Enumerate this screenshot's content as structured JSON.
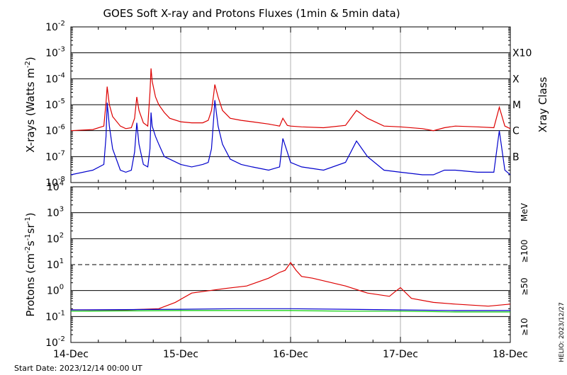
{
  "chart_data": [
    {
      "type": "line",
      "title": "GOES Soft X-ray and Protons Fluxes  (1min & 5min data)",
      "ylabel": "X-rays (Watts m",
      "ylabel_sup": "-2",
      "ylabel_close": ")",
      "right_label": "Xray Class",
      "y_scale": "log",
      "ylim": [
        1e-08,
        0.01
      ],
      "y_ticks": [
        {
          "base": "10",
          "exp": "-2"
        },
        {
          "base": "10",
          "exp": "-3"
        },
        {
          "base": "10",
          "exp": "-4"
        },
        {
          "base": "10",
          "exp": "-5"
        },
        {
          "base": "10",
          "exp": "-6"
        },
        {
          "base": "10",
          "exp": "-7"
        },
        {
          "base": "10",
          "exp": "-8"
        }
      ],
      "class_labels": [
        {
          "label": "X10",
          "level": 0.001
        },
        {
          "label": "X",
          "level": 0.0001
        },
        {
          "label": "M",
          "level": 1e-05
        },
        {
          "label": "C",
          "level": 1e-06
        },
        {
          "label": "B",
          "level": 1e-07
        }
      ],
      "grid": true,
      "series": [
        {
          "color": "#dd0000",
          "x": [
            0.0,
            0.2,
            0.3,
            0.32,
            0.33,
            0.35,
            0.38,
            0.45,
            0.5,
            0.55,
            0.58,
            0.6,
            0.62,
            0.66,
            0.7,
            0.72,
            0.73,
            0.74,
            0.77,
            0.8,
            0.85,
            0.9,
            1.0,
            1.1,
            1.2,
            1.25,
            1.28,
            1.3,
            1.31,
            1.34,
            1.38,
            1.45,
            1.55,
            1.65,
            1.8,
            1.9,
            1.93,
            1.97,
            2.0,
            2.1,
            2.3,
            2.5,
            2.6,
            2.7,
            2.85,
            3.0,
            3.2,
            3.3,
            3.4,
            3.5,
            3.7,
            3.85,
            3.9,
            3.95,
            4.0
          ],
          "y": [
            1e-06,
            1.1e-06,
            1.5e-06,
            1.2e-05,
            5e-05,
            1e-05,
            3.5e-06,
            1.5e-06,
            1.2e-06,
            1.3e-06,
            3e-06,
            2e-05,
            6e-06,
            2e-06,
            1.5e-06,
            3e-05,
            0.00025,
            8e-05,
            2e-05,
            1e-05,
            5e-06,
            3e-06,
            2.2e-06,
            2e-06,
            2e-06,
            2.5e-06,
            6e-06,
            2.5e-05,
            6e-05,
            2e-05,
            6e-06,
            3e-06,
            2.5e-06,
            2.2e-06,
            1.8e-06,
            1.5e-06,
            3e-06,
            1.6e-06,
            1.5e-06,
            1.4e-06,
            1.3e-06,
            1.6e-06,
            6e-06,
            3e-06,
            1.5e-06,
            1.4e-06,
            1.2e-06,
            1e-06,
            1.3e-06,
            1.5e-06,
            1.4e-06,
            1.3e-06,
            8e-06,
            1.5e-06,
            1.2e-06
          ]
        },
        {
          "color": "#0000cc",
          "x": [
            0.0,
            0.2,
            0.3,
            0.32,
            0.33,
            0.35,
            0.38,
            0.45,
            0.5,
            0.55,
            0.58,
            0.6,
            0.62,
            0.66,
            0.7,
            0.72,
            0.73,
            0.74,
            0.77,
            0.8,
            0.85,
            0.9,
            1.0,
            1.1,
            1.2,
            1.25,
            1.28,
            1.3,
            1.31,
            1.34,
            1.38,
            1.45,
            1.55,
            1.65,
            1.8,
            1.9,
            1.93,
            1.97,
            2.0,
            2.1,
            2.3,
            2.5,
            2.6,
            2.7,
            2.85,
            3.0,
            3.2,
            3.3,
            3.4,
            3.5,
            3.7,
            3.85,
            3.9,
            3.95,
            4.0
          ],
          "y": [
            2e-08,
            3e-08,
            5e-08,
            6e-07,
            1.2e-05,
            1.5e-06,
            2e-07,
            3e-08,
            2.5e-08,
            3e-08,
            1.5e-07,
            2e-06,
            3e-07,
            5e-08,
            4e-08,
            2e-07,
            5e-06,
            1.5e-06,
            6e-07,
            3e-07,
            1e-07,
            8e-08,
            5e-08,
            4e-08,
            5e-08,
            6e-08,
            2e-07,
            3e-06,
            1.5e-05,
            1.5e-06,
            3e-07,
            8e-08,
            5e-08,
            4e-08,
            3e-08,
            4e-08,
            5e-07,
            1.5e-07,
            6e-08,
            4e-08,
            3e-08,
            6e-08,
            4e-07,
            1e-07,
            3e-08,
            2.5e-08,
            2e-08,
            2e-08,
            3e-08,
            3e-08,
            2.5e-08,
            2.5e-08,
            1e-06,
            3e-08,
            2e-08
          ]
        }
      ]
    },
    {
      "type": "line",
      "ylabel": "Protons (cm",
      "ylabel_sup1": "-2",
      "ylabel_mid": "s",
      "ylabel_sup2": "-1",
      "ylabel_mid2": "sr",
      "ylabel_sup3": "-1",
      "ylabel_close": ")",
      "y_scale": "log",
      "ylim": [
        0.01,
        10000
      ],
      "y_ticks": [
        {
          "base": "10",
          "exp": "4"
        },
        {
          "base": "10",
          "exp": "3"
        },
        {
          "base": "10",
          "exp": "2"
        },
        {
          "base": "10",
          "exp": "1"
        },
        {
          "base": "10",
          "exp": "0"
        },
        {
          "base": "10",
          "exp": "-1"
        },
        {
          "base": "10",
          "exp": "-2"
        }
      ],
      "threshold": 10,
      "grid": true,
      "legend": [
        {
          "label": "MeV",
          "color": "#000000"
        },
        {
          "label": "≥100",
          "color": "#00cc00"
        },
        {
          "label": "≥50",
          "color": "#0000cc"
        },
        {
          "label": "≥10",
          "color": "#dd0000"
        }
      ],
      "series": [
        {
          "color": "#dd0000",
          "x": [
            0.0,
            0.5,
            0.8,
            0.95,
            1.1,
            1.4,
            1.6,
            1.8,
            1.9,
            1.95,
            2.0,
            2.05,
            2.1,
            2.2,
            2.5,
            2.7,
            2.9,
            2.95,
            3.0,
            3.1,
            3.3,
            3.5,
            3.8,
            4.0
          ],
          "y": [
            0.18,
            0.18,
            0.2,
            0.35,
            0.8,
            1.2,
            1.5,
            3.0,
            5.0,
            6.0,
            12.0,
            6.0,
            3.5,
            3.0,
            1.5,
            0.8,
            0.6,
            0.9,
            1.3,
            0.5,
            0.35,
            0.3,
            0.25,
            0.3
          ]
        },
        {
          "color": "#0000cc",
          "x": [
            0.0,
            1.0,
            1.5,
            2.0,
            2.5,
            3.0,
            3.5,
            4.0
          ],
          "y": [
            0.18,
            0.19,
            0.2,
            0.2,
            0.19,
            0.18,
            0.17,
            0.17
          ]
        },
        {
          "color": "#00cc00",
          "x": [
            0.0,
            1.0,
            1.5,
            2.0,
            2.5,
            3.0,
            3.5,
            4.0
          ],
          "y": [
            0.16,
            0.17,
            0.17,
            0.17,
            0.16,
            0.16,
            0.15,
            0.15
          ]
        }
      ]
    }
  ],
  "x_axis": {
    "ticks": [
      "14-Dec",
      "15-Dec",
      "16-Dec",
      "17-Dec",
      "18-Dec"
    ],
    "xlim": [
      0,
      4
    ]
  },
  "footer": {
    "start_date": "Start Date: 2023/12/14 00:00 UT",
    "credit": "HELIO: 2023/12/27"
  }
}
